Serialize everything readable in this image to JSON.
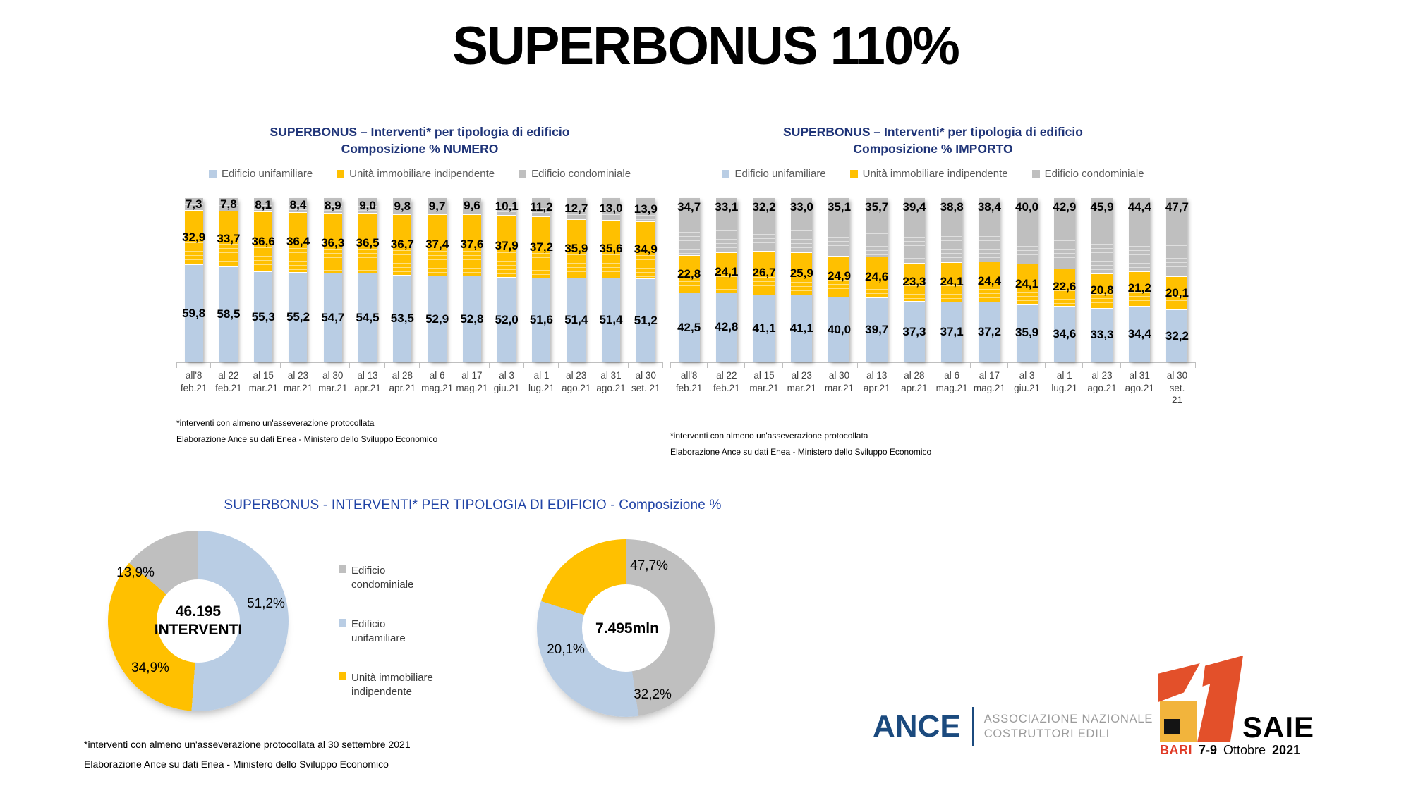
{
  "slide_title": "SUPERBONUS 110%",
  "chart_data": [
    {
      "id": "numero",
      "type": "bar",
      "stacked": true,
      "title": "SUPERBONUS – Interventi*  per  tipologia di edificio",
      "subtitle_prefix": "Composizione % ",
      "subtitle_emphasis": "NUMERO",
      "ylim": [
        0,
        100
      ],
      "grid": false,
      "legend_position": "top",
      "categories": [
        [
          "all'8",
          "feb.21"
        ],
        [
          "al 22",
          "feb.21"
        ],
        [
          "al 15",
          "mar.21"
        ],
        [
          "al 23",
          "mar.21"
        ],
        [
          "al 30",
          "mar.21"
        ],
        [
          "al 13",
          "apr.21"
        ],
        [
          "al 28",
          "apr.21"
        ],
        [
          "al 6",
          "mag.21"
        ],
        [
          "al 17",
          "mag.21"
        ],
        [
          "al 3",
          "giu.21"
        ],
        [
          "al 1",
          "lug.21"
        ],
        [
          "al 23",
          "ago.21"
        ],
        [
          "al 31",
          "ago.21"
        ],
        [
          "al 30",
          "set. 21"
        ]
      ],
      "series": [
        {
          "name": "Edificio unifamiliare",
          "color": "#b9cde4",
          "values": [
            59.8,
            58.5,
            55.3,
            55.2,
            54.7,
            54.5,
            53.5,
            52.9,
            52.8,
            52.0,
            51.6,
            51.4,
            51.4,
            51.2
          ]
        },
        {
          "name": "Unità immobiliare indipendente",
          "color": "#ffc000",
          "values": [
            32.9,
            33.7,
            36.6,
            36.4,
            36.3,
            36.5,
            36.7,
            37.4,
            37.6,
            37.9,
            37.2,
            35.9,
            35.6,
            34.9
          ]
        },
        {
          "name": "Edificio condominiale",
          "color": "#bfbfbf",
          "values": [
            7.3,
            7.8,
            8.1,
            8.4,
            8.9,
            9.0,
            9.8,
            9.7,
            9.6,
            10.1,
            11.2,
            12.7,
            13.0,
            13.9
          ]
        }
      ],
      "footnotes": [
        "*interventi con almeno un'asseverazione protocollata",
        "Elaborazione Ance su dati Enea - Ministero dello Sviluppo Economico"
      ]
    },
    {
      "id": "importo",
      "type": "bar",
      "stacked": true,
      "title": "SUPERBONUS – Interventi*  per  tipologia di edificio",
      "subtitle_prefix": "Composizione % ",
      "subtitle_emphasis": "IMPORTO",
      "ylim": [
        0,
        100
      ],
      "grid": false,
      "legend_position": "top",
      "categories": [
        [
          "all'8",
          "feb.21"
        ],
        [
          "al 22",
          "feb.21"
        ],
        [
          "al 15",
          "mar.21"
        ],
        [
          "al 23",
          "mar.21"
        ],
        [
          "al 30",
          "mar.21"
        ],
        [
          "al 13",
          "apr.21"
        ],
        [
          "al 28",
          "apr.21"
        ],
        [
          "al 6",
          "mag.21"
        ],
        [
          "al 17",
          "mag.21"
        ],
        [
          "al 3",
          "giu.21"
        ],
        [
          "al 1",
          "lug.21"
        ],
        [
          "al 23",
          "ago.21"
        ],
        [
          "al 31",
          "ago.21"
        ],
        [
          "al 30 set.",
          "21"
        ]
      ],
      "series": [
        {
          "name": "Edificio unifamiliare",
          "color": "#b9cde4",
          "values": [
            42.5,
            42.8,
            41.1,
            41.1,
            40.0,
            39.7,
            37.3,
            37.1,
            37.2,
            35.9,
            34.6,
            33.3,
            34.4,
            32.2
          ]
        },
        {
          "name": "Unità immobiliare indipendente",
          "color": "#ffc000",
          "values": [
            22.8,
            24.1,
            26.7,
            25.9,
            24.9,
            24.6,
            23.3,
            24.1,
            24.4,
            24.1,
            22.6,
            20.8,
            21.2,
            20.1
          ]
        },
        {
          "name": "Edificio condominiale",
          "color": "#bfbfbf",
          "values": [
            34.7,
            33.1,
            32.2,
            33.0,
            35.1,
            35.7,
            39.4,
            38.8,
            38.4,
            40.0,
            42.9,
            45.9,
            44.4,
            47.7
          ]
        }
      ],
      "footnotes": [
        "*interventi con almeno un'asseverazione protocollata",
        "Elaborazione Ance su dati Enea - Ministero dello Sviluppo Economico"
      ]
    },
    {
      "id": "donut-numero",
      "type": "pie",
      "donut": true,
      "center_label_line1": "46.195",
      "center_label_line2": "INTERVENTI",
      "slices": [
        {
          "name": "Edificio unifamiliare",
          "color": "#b9cde4",
          "value": 51.2,
          "label": "51,2%"
        },
        {
          "name": "Unità immobiliare indipendente",
          "color": "#ffc000",
          "value": 34.9,
          "label": "34,9%"
        },
        {
          "name": "Edificio condominiale",
          "color": "#bfbfbf",
          "value": 13.9,
          "label": "13,9%"
        }
      ]
    },
    {
      "id": "donut-importo",
      "type": "pie",
      "donut": true,
      "center_label_line1": "7.495mln",
      "center_label_line2": "",
      "slices": [
        {
          "name": "Edificio condominiale",
          "color": "#bfbfbf",
          "value": 47.7,
          "label": "47,7%"
        },
        {
          "name": "Edificio unifamiliare",
          "color": "#b9cde4",
          "value": 32.2,
          "label": "32,2%"
        },
        {
          "name": "Unità immobiliare indipendente",
          "color": "#ffc000",
          "value": 20.1,
          "label": "20,1%"
        }
      ]
    }
  ],
  "bottom_section": {
    "title": "SUPERBONUS -  INTERVENTI* PER TIPOLOGIA DI EDIFICIO - Composizione %",
    "legend": [
      {
        "label": "Edificio condominiale",
        "color": "#bfbfbf"
      },
      {
        "label": "Edificio unifamiliare",
        "color": "#b9cde4"
      },
      {
        "label": "Unità immobiliare indipendente",
        "color": "#ffc000"
      }
    ],
    "footnotes": [
      "*interventi con almeno un'asseverazione protocollata al 30 settembre 2021",
      "Elaborazione Ance su dati Enea - Ministero dello Sviluppo Economico"
    ]
  },
  "logos": {
    "ance": {
      "name": "ANCE",
      "desc_line1": "Associazione Nazionale",
      "desc_line2": "Costruttori Edili",
      "brand_color": "#1b4a7e"
    },
    "saie": {
      "name": "SAIE",
      "city": "BARI",
      "dates": "7-9",
      "month": "Ottobre",
      "year": "2021",
      "accent_color": "#e3502a"
    }
  }
}
